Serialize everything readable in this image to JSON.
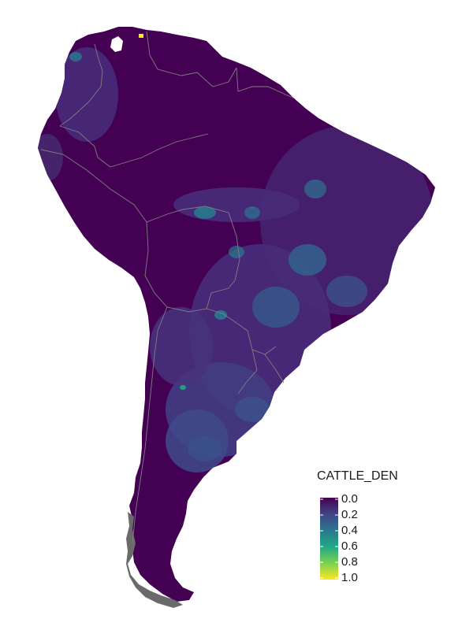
{
  "map": {
    "region": "South America",
    "fill_base_color": "#440154",
    "border_color": "#7f7f7f",
    "islands_color": "#6a6a6a"
  },
  "legend": {
    "title": "CATTLE_DEN",
    "ticks": [
      "0.0",
      "0.2",
      "0.4",
      "0.6",
      "0.8",
      "1.0"
    ],
    "colormap": "viridis",
    "colors": [
      "#440154",
      "#414487",
      "#2a788e",
      "#22a884",
      "#7ad151",
      "#fde725"
    ]
  }
}
